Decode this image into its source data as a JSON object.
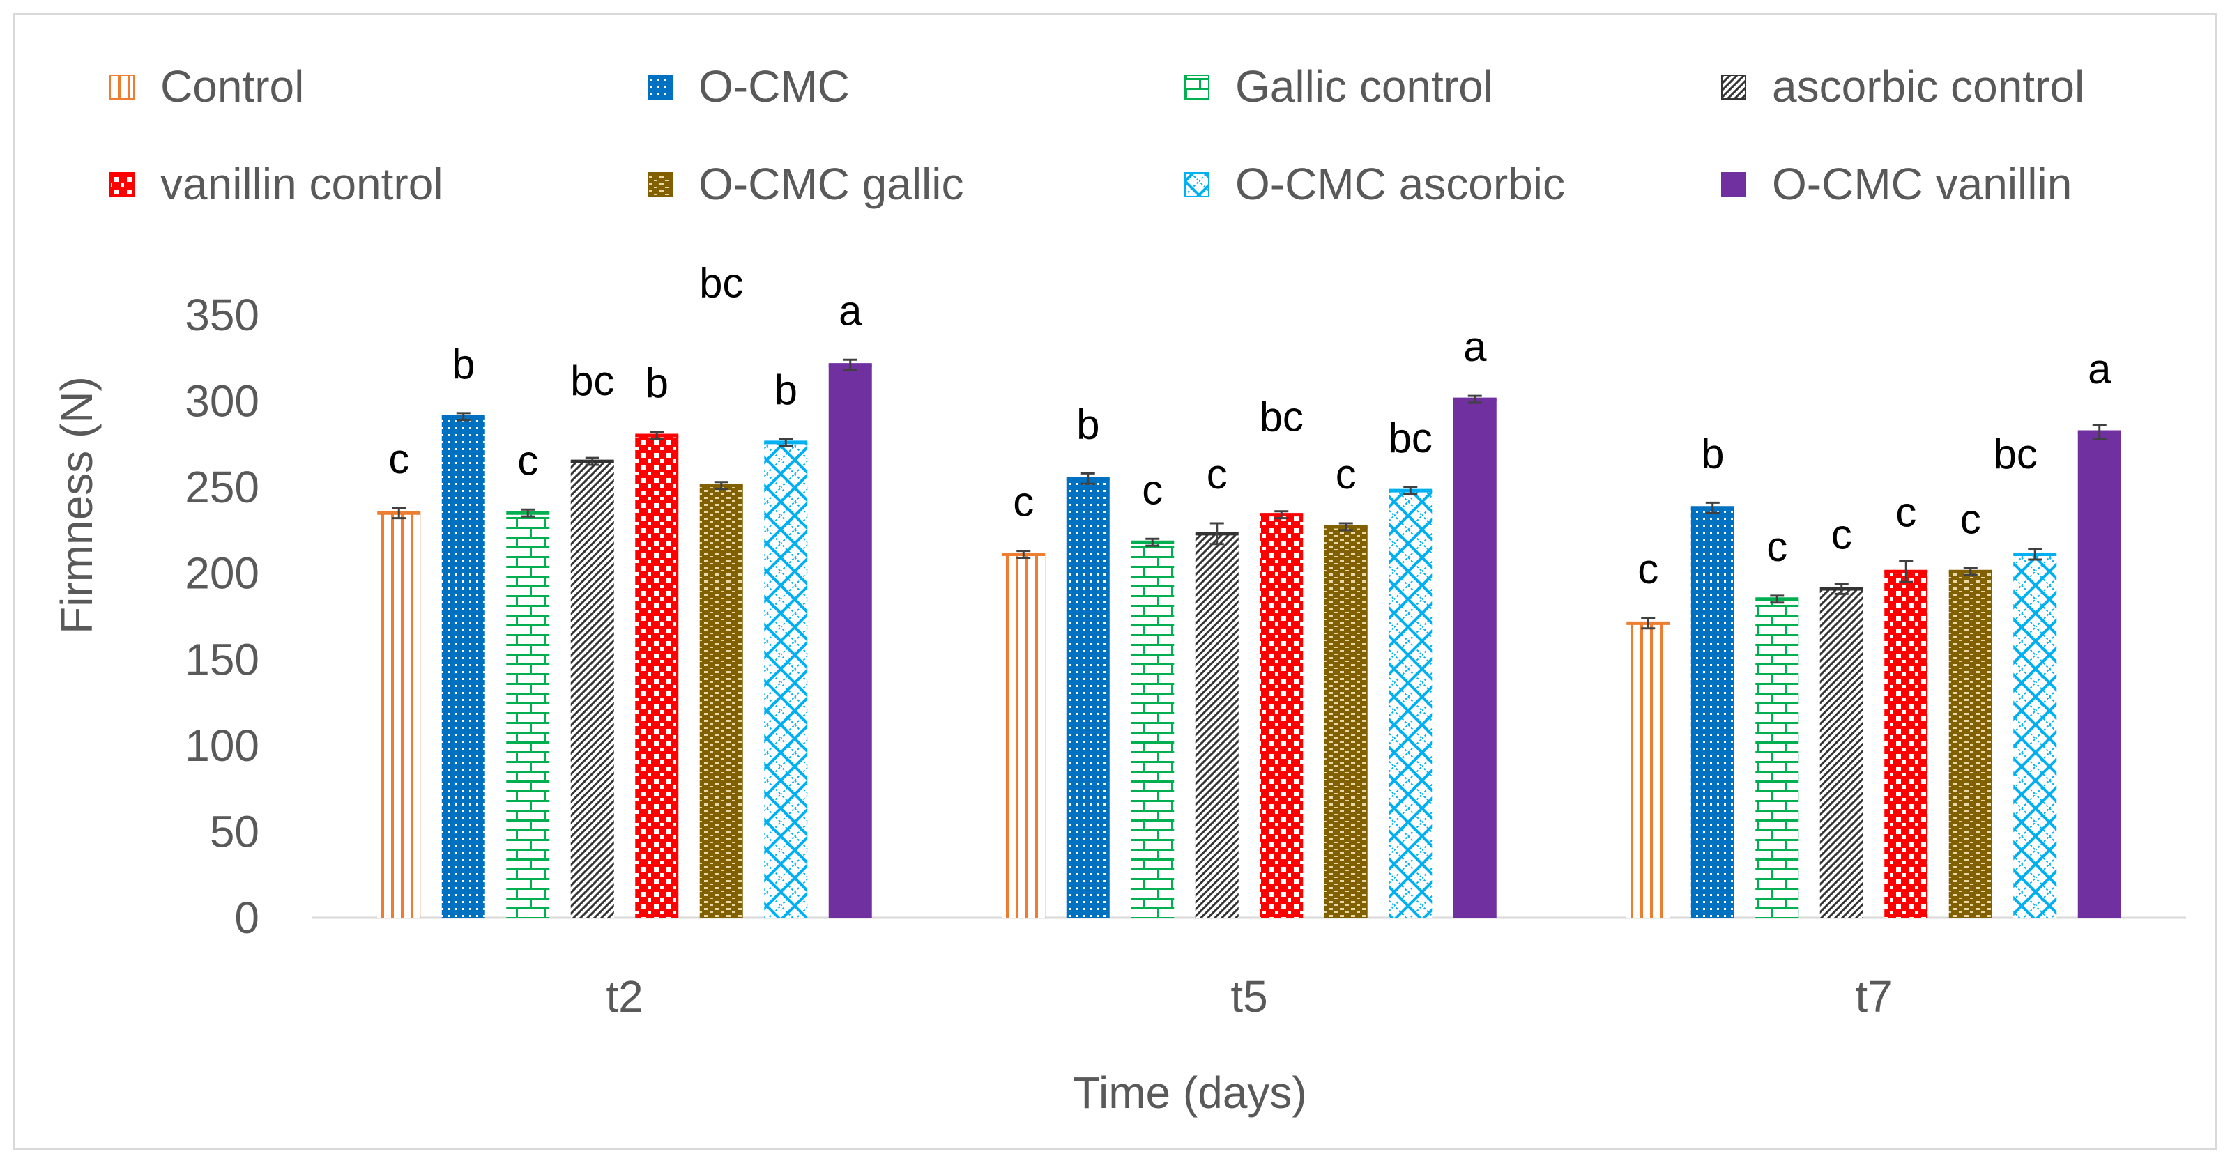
{
  "chart_data": {
    "type": "bar",
    "title": "",
    "xlabel": "Time (days)",
    "ylabel": "Firmness (N)",
    "ylim": [
      0,
      350
    ],
    "yticks": [
      "0",
      "50",
      "100",
      "150",
      "200",
      "250",
      "300",
      "350"
    ],
    "categories": [
      "t2",
      "t5",
      "t7"
    ],
    "legend_position": "top",
    "series": [
      {
        "name": "Control",
        "color": "#ED7D31",
        "pattern": "vertical-lines",
        "values": [
          235,
          211,
          171
        ],
        "errors": [
          3,
          2,
          3
        ],
        "letters": [
          "c",
          "c",
          "c"
        ]
      },
      {
        "name": "O-CMC",
        "color": "#0070C0",
        "pattern": "dots",
        "values": [
          291,
          255,
          238
        ],
        "errors": [
          2,
          3,
          3
        ],
        "letters": [
          "b",
          "b",
          "b"
        ]
      },
      {
        "name": "Gallic control",
        "color": "#00B050",
        "pattern": "bricks",
        "values": [
          235,
          218,
          185
        ],
        "errors": [
          2,
          2,
          2
        ],
        "letters": [
          "c",
          "c",
          "c"
        ]
      },
      {
        "name": "ascorbic control",
        "color": "#333333",
        "pattern": "diagonal-hatch",
        "values": [
          265,
          223,
          191
        ],
        "errors": [
          2,
          6,
          3
        ],
        "letters": [
          "bc",
          "c",
          "c"
        ]
      },
      {
        "name": "vanillin control",
        "color": "#FF0000",
        "pattern": "checker",
        "values": [
          280,
          234,
          201
        ],
        "errors": [
          2,
          2,
          6
        ],
        "letters": [
          "b",
          "bc",
          "c"
        ]
      },
      {
        "name": "O-CMC gallic",
        "color": "#806000",
        "pattern": "horizontal-dashes",
        "values": [
          251,
          227,
          201
        ],
        "errors": [
          2,
          2,
          2
        ],
        "letters": [
          "bc",
          "c",
          "c"
        ]
      },
      {
        "name": "O-CMC ascorbic",
        "color": "#00B0F0",
        "pattern": "diamond-lattice",
        "values": [
          276,
          248,
          211
        ],
        "errors": [
          2,
          2,
          3
        ],
        "letters": [
          "b",
          "bc",
          ""
        ]
      },
      {
        "name": "O-CMC vanillin",
        "color": "#7030A0",
        "pattern": "solid",
        "values": [
          321,
          301,
          282
        ],
        "errors": [
          3,
          2,
          4
        ],
        "letters": [
          "a",
          "a",
          "a"
        ]
      }
    ]
  }
}
